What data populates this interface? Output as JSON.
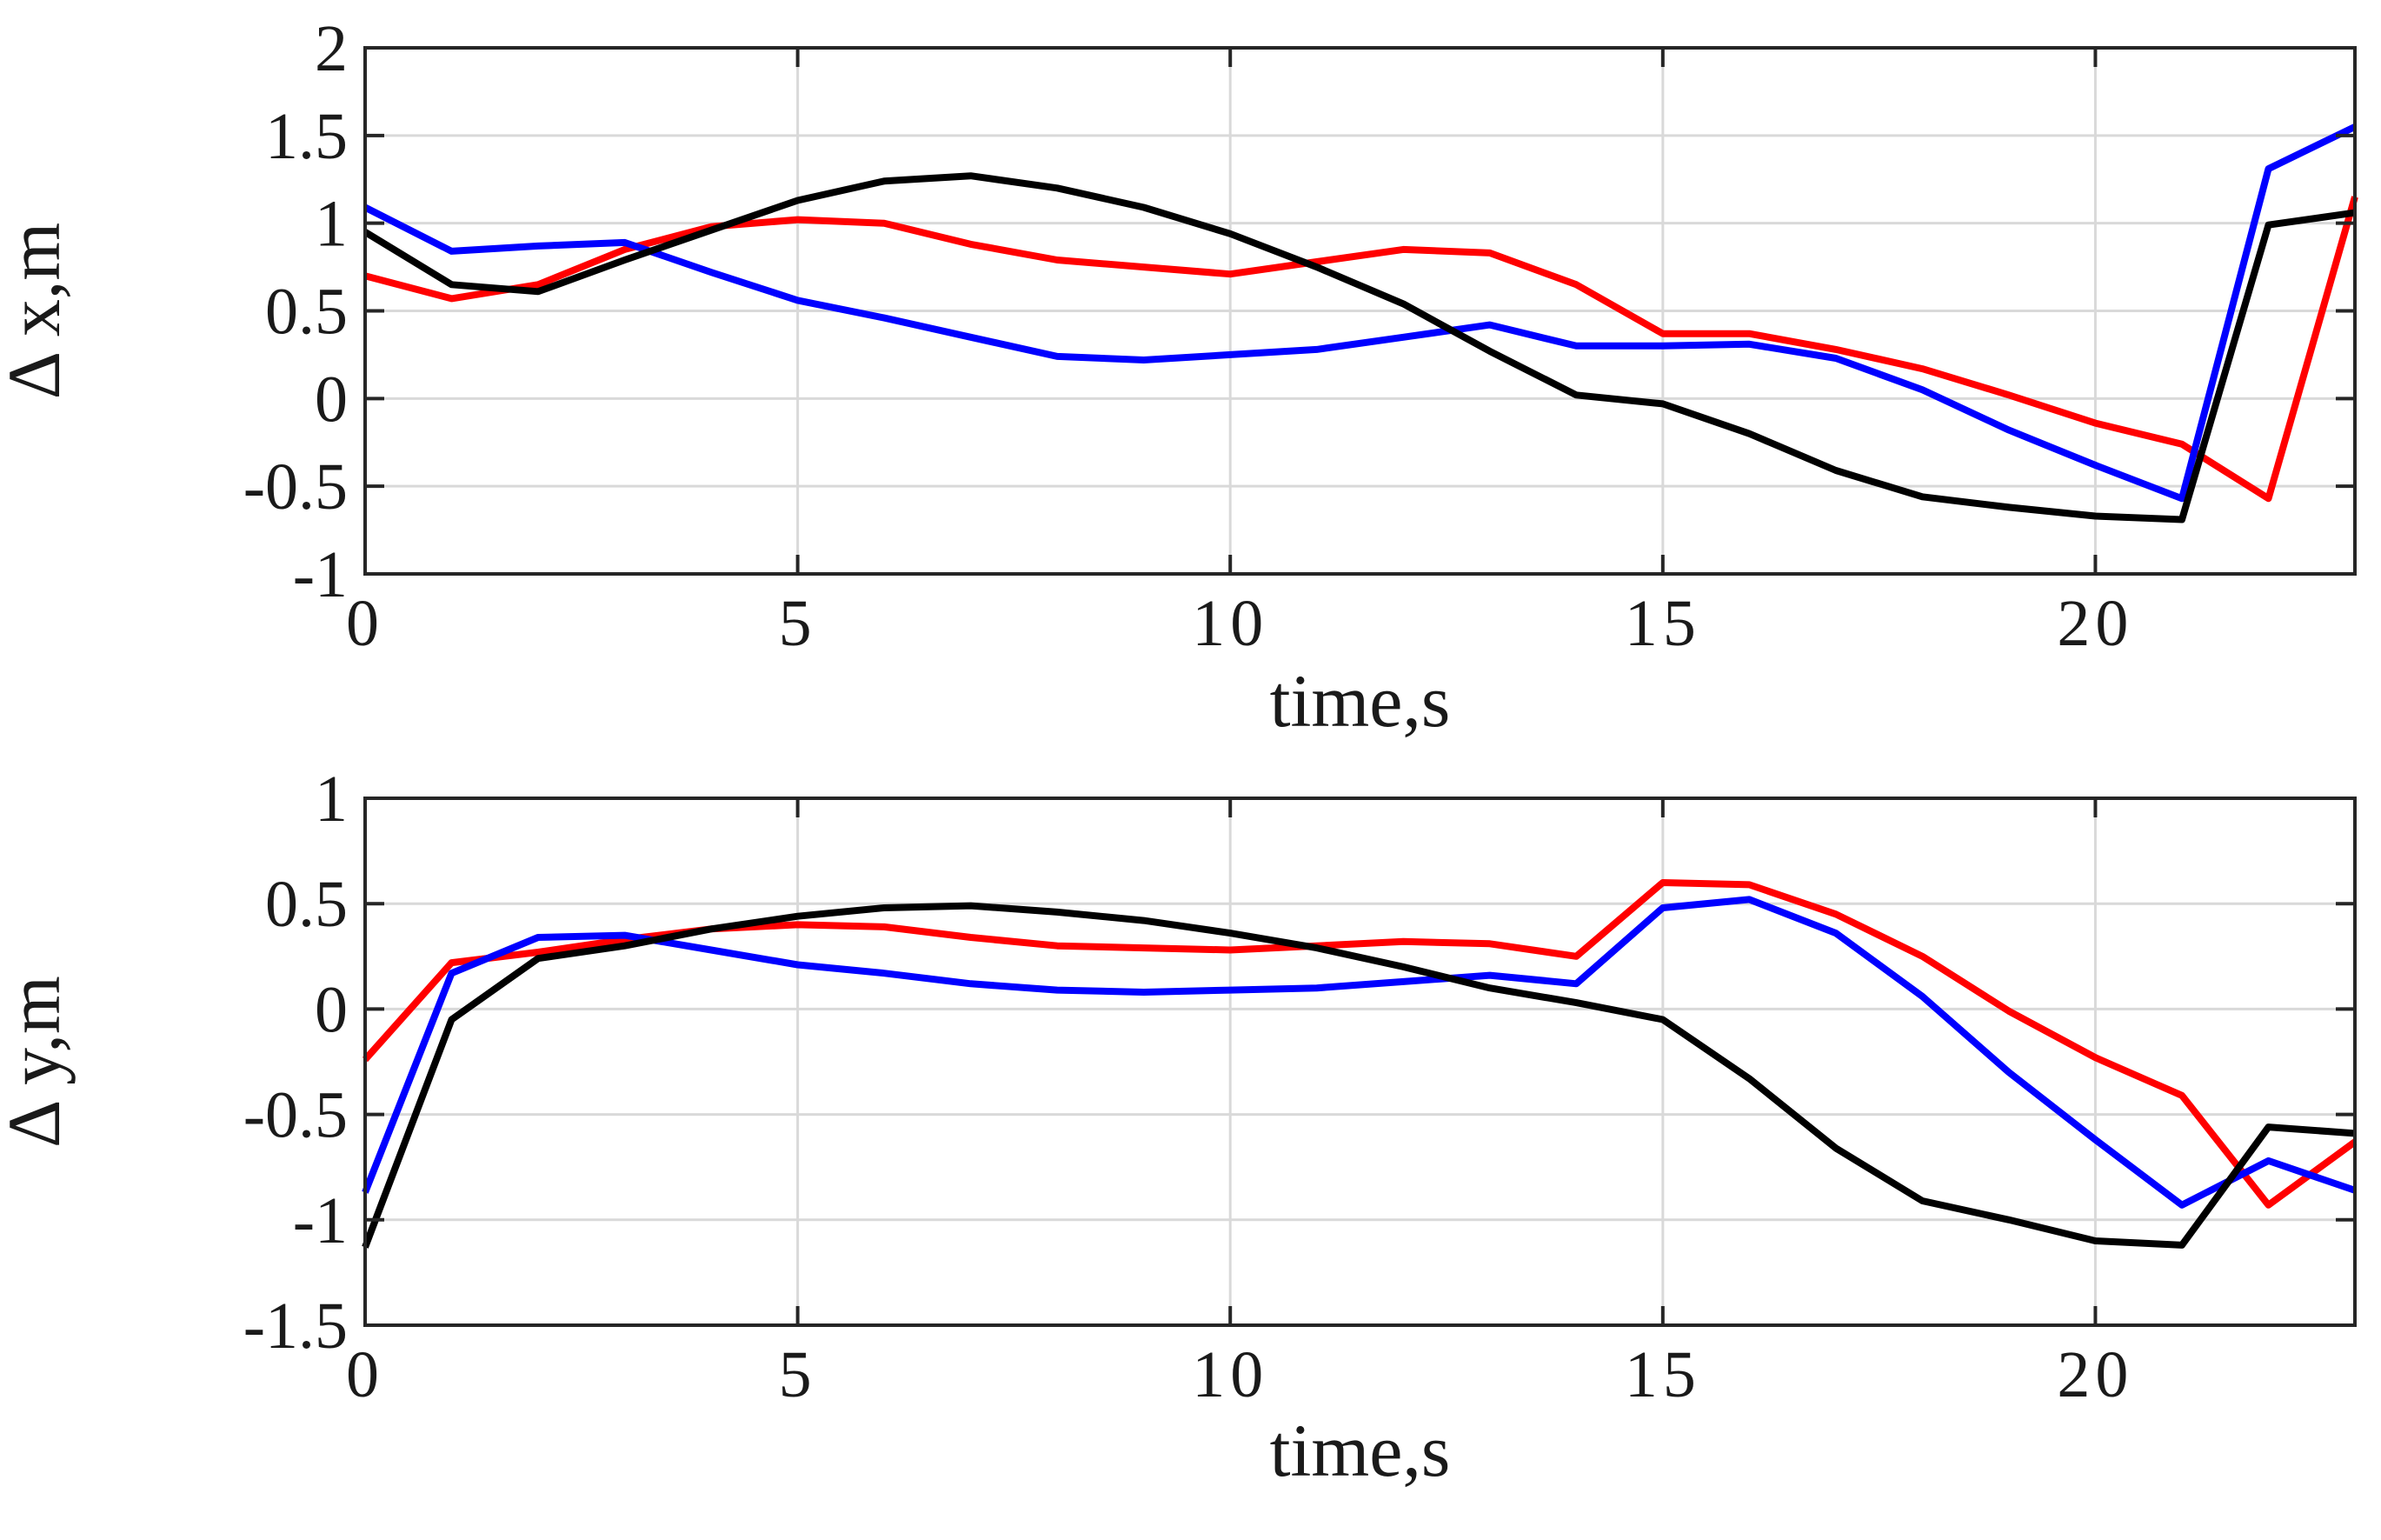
{
  "colors": {
    "background": "#ffffff",
    "axes": "#262626",
    "grid": "#d9d9d9",
    "series_colors": [
      "#ff0000",
      "#0000ff",
      "#000000"
    ]
  },
  "chart_data": [
    {
      "type": "line",
      "xlabel": "time,s",
      "ylabel": "Δ  x,m",
      "xlim": [
        0,
        23
      ],
      "ylim": [
        -1,
        2
      ],
      "xticks": [
        0,
        5,
        10,
        15,
        20
      ],
      "xtick_labels": [
        "0",
        "5",
        "10",
        "15",
        "20"
      ],
      "yticks": [
        -1,
        -0.5,
        0,
        0.5,
        1,
        1.5,
        2
      ],
      "ytick_labels": [
        "-1",
        "-0.5",
        "0",
        "0.5",
        "1",
        "1.5",
        "2"
      ],
      "grid": true,
      "x": [
        0,
        1,
        2,
        3,
        4,
        5,
        6,
        7,
        8,
        9,
        10,
        11,
        12,
        13,
        14,
        15,
        16,
        17,
        18,
        19,
        20,
        21,
        22,
        23
      ],
      "series": [
        {
          "color": "#ff0000",
          "values": [
            0.7,
            0.57,
            0.65,
            0.85,
            0.98,
            1.02,
            1.0,
            0.88,
            0.79,
            0.75,
            0.71,
            0.78,
            0.85,
            0.83,
            0.65,
            0.37,
            0.37,
            0.28,
            0.17,
            0.02,
            -0.14,
            -0.26,
            -0.57,
            1.15
          ]
        },
        {
          "color": "#0000ff",
          "values": [
            1.09,
            0.84,
            0.87,
            0.89,
            0.72,
            0.56,
            0.46,
            0.35,
            0.24,
            0.22,
            0.25,
            0.28,
            0.35,
            0.42,
            0.3,
            0.3,
            0.31,
            0.23,
            0.05,
            -0.18,
            -0.38,
            -0.57,
            1.31,
            1.55
          ]
        },
        {
          "color": "#000000",
          "values": [
            0.95,
            0.65,
            0.61,
            0.79,
            0.96,
            1.13,
            1.24,
            1.27,
            1.2,
            1.09,
            0.94,
            0.75,
            0.54,
            0.27,
            0.02,
            -0.03,
            -0.2,
            -0.41,
            -0.56,
            -0.62,
            -0.67,
            -0.69,
            0.99,
            1.06
          ]
        }
      ]
    },
    {
      "type": "line",
      "xlabel": "time,s",
      "ylabel": "Δ  y,m",
      "xlim": [
        0,
        23
      ],
      "ylim": [
        -1.5,
        1
      ],
      "xticks": [
        0,
        5,
        10,
        15,
        20
      ],
      "xtick_labels": [
        "0",
        "5",
        "10",
        "15",
        "20"
      ],
      "yticks": [
        -1.5,
        -1,
        -0.5,
        0,
        0.5,
        1
      ],
      "ytick_labels": [
        "-1.5",
        "-1",
        "-0.5",
        "0",
        "0.5",
        "1"
      ],
      "grid": true,
      "x": [
        0,
        1,
        2,
        3,
        4,
        5,
        6,
        7,
        8,
        9,
        10,
        11,
        12,
        13,
        14,
        15,
        16,
        17,
        18,
        19,
        20,
        21,
        22,
        23
      ],
      "series": [
        {
          "color": "#ff0000",
          "values": [
            -0.24,
            0.22,
            0.27,
            0.33,
            0.38,
            0.4,
            0.39,
            0.34,
            0.3,
            0.29,
            0.28,
            0.3,
            0.32,
            0.31,
            0.25,
            0.6,
            0.59,
            0.45,
            0.25,
            -0.01,
            -0.23,
            -0.41,
            -0.93,
            -0.63
          ]
        },
        {
          "color": "#0000ff",
          "values": [
            -0.87,
            0.17,
            0.34,
            0.35,
            0.28,
            0.21,
            0.17,
            0.12,
            0.09,
            0.08,
            0.09,
            0.1,
            0.13,
            0.16,
            0.12,
            0.48,
            0.52,
            0.36,
            0.06,
            -0.3,
            -0.62,
            -0.93,
            -0.72,
            -0.86
          ]
        },
        {
          "color": "#000000",
          "values": [
            -1.13,
            -0.05,
            0.24,
            0.3,
            0.38,
            0.44,
            0.48,
            0.49,
            0.46,
            0.42,
            0.36,
            0.29,
            0.2,
            0.1,
            0.03,
            -0.05,
            -0.33,
            -0.66,
            -0.91,
            -1.0,
            -1.1,
            -1.12,
            -0.56,
            -0.59
          ]
        }
      ]
    }
  ]
}
